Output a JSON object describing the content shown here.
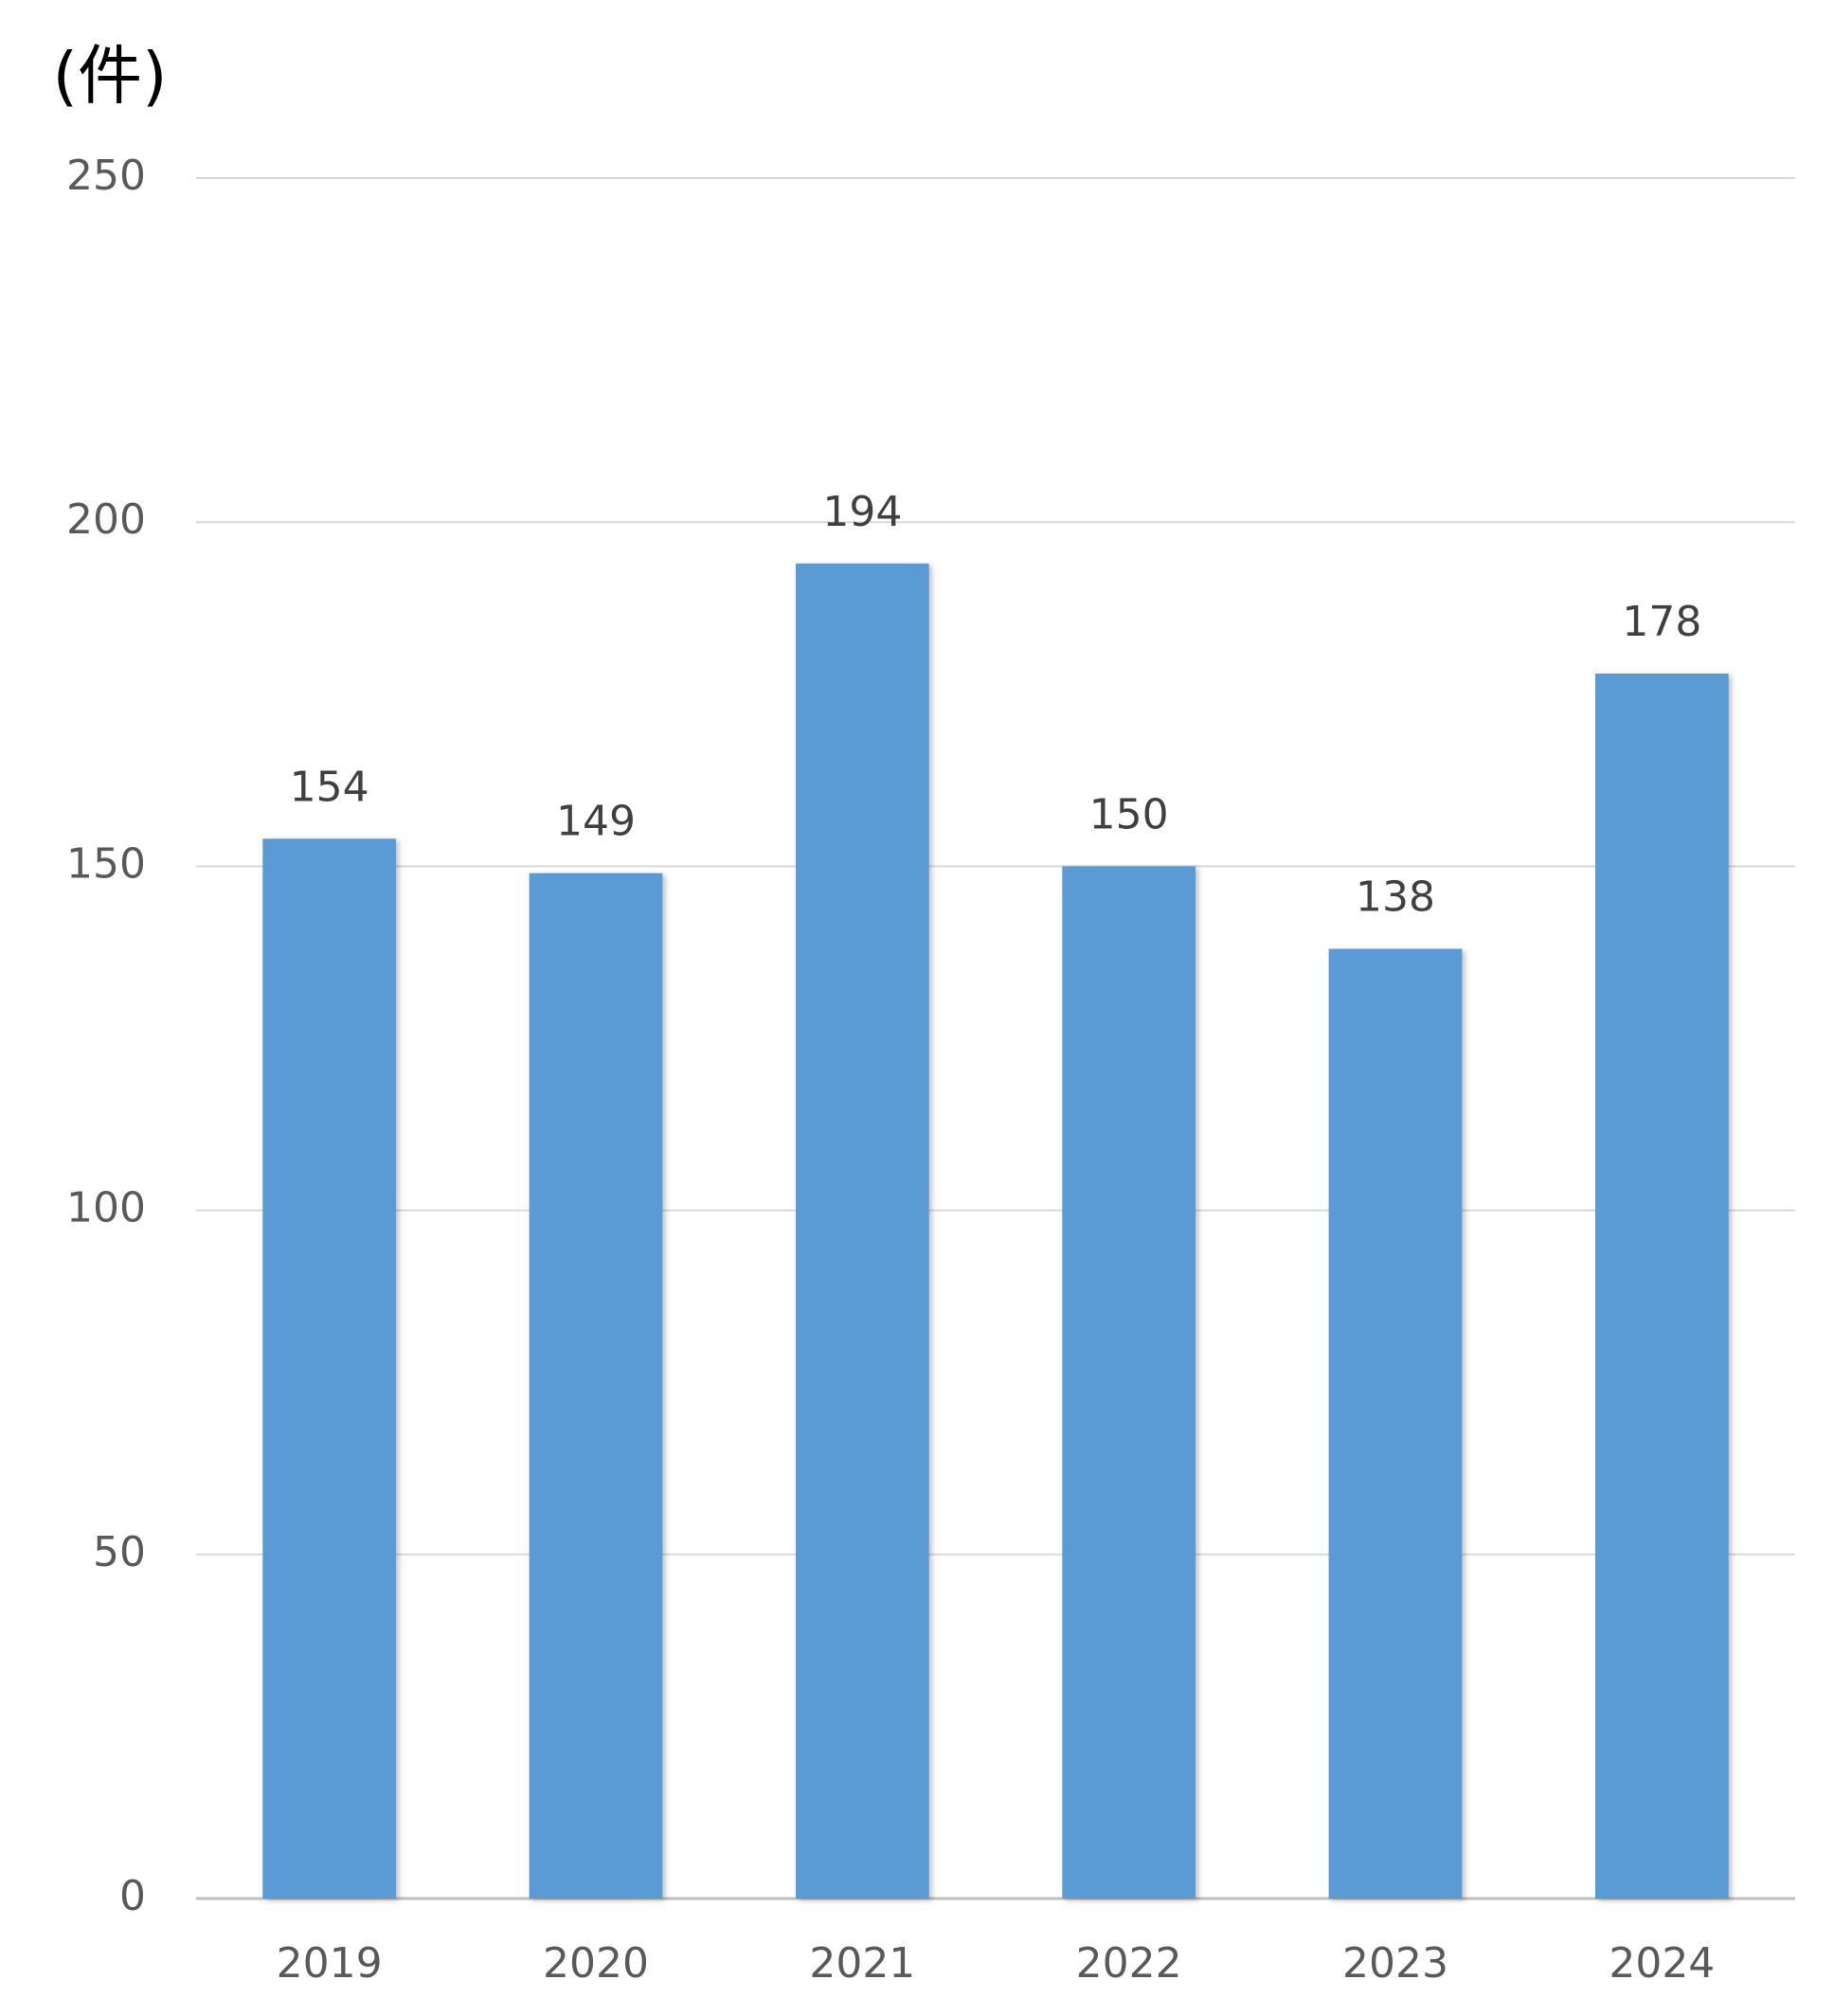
{
  "chart_data": {
    "type": "bar",
    "title": "(件)",
    "categories": [
      "2019",
      "2020",
      "2021",
      "2022",
      "2023",
      "2024"
    ],
    "values": [
      154,
      149,
      194,
      150,
      138,
      178
    ],
    "color": "#5b9bd5",
    "ylim": [
      0,
      250
    ],
    "yticks": [
      0,
      50,
      100,
      150,
      200,
      250
    ],
    "grid": true
  }
}
